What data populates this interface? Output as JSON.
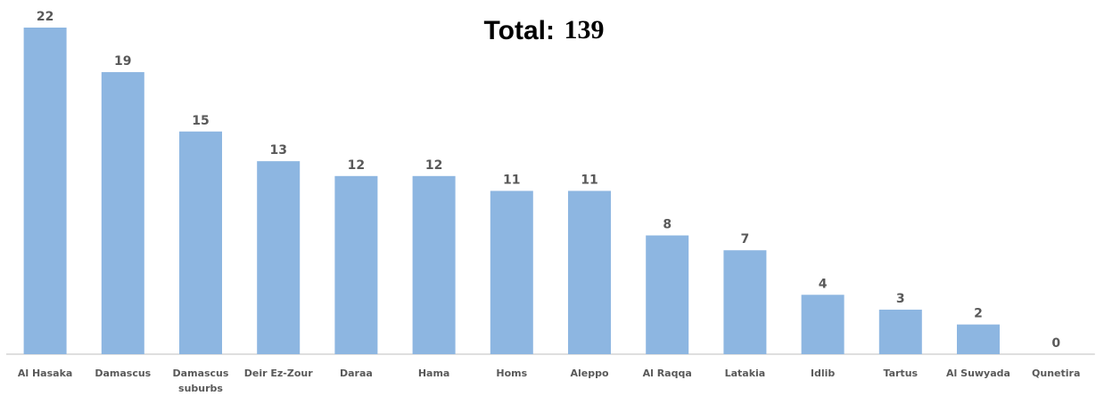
{
  "chart_data": {
    "type": "bar",
    "title": "Total:",
    "total": 139,
    "categories": [
      "Al Hasaka",
      "Damascus",
      "Damascus suburbs",
      "Deir Ez-Zour",
      "Daraa",
      "Hama",
      "Homs",
      "Aleppo",
      "Al Raqqa",
      "Latakia",
      "Idlib",
      "Tartus",
      "Al Suwyada",
      "Qunetira"
    ],
    "values": [
      22,
      19,
      15,
      13,
      12,
      12,
      11,
      11,
      8,
      7,
      4,
      3,
      2,
      0
    ],
    "color": "#8db6e1"
  }
}
